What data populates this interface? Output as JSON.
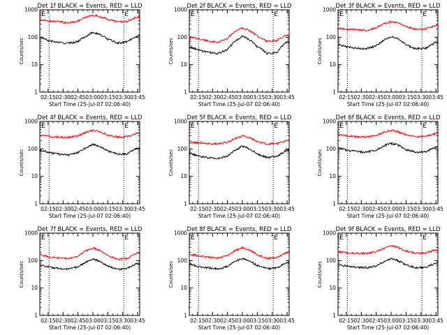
{
  "chart_data": [
    {
      "type": "line",
      "title": "Det 1f BLACK = Events, RED = LLD",
      "xlabel": "Start Time (25-Jul-07 02:06:40)",
      "ylabel": "Counts/sec",
      "yscale": "log",
      "ylim": [
        1,
        1000
      ],
      "xlim": [
        "02:06:40",
        "03:47:00"
      ],
      "x_ticks": [
        "02:15",
        "02:30",
        "02:45",
        "03:00",
        "03:15",
        "03:30",
        "03:45"
      ],
      "y_ticks": [
        "1",
        "10",
        "100",
        "1000"
      ],
      "vlines": [
        "02:16",
        "03:31"
      ],
      "markers": [
        {
          "label": "E",
          "x": "02:07:30"
        },
        {
          "label": "E",
          "x": "03:31"
        }
      ],
      "series": [
        {
          "color": "#ff0000",
          "x": [
            "02:06:40",
            "02:15",
            "02:25",
            "02:35",
            "02:45",
            "02:55",
            "03:00",
            "03:05",
            "03:15",
            "03:25",
            "03:35",
            "03:45"
          ],
          "values": [
            420,
            390,
            370,
            330,
            390,
            560,
            640,
            590,
            450,
            360,
            370,
            560
          ]
        },
        {
          "color": "#000000",
          "x": [
            "02:06:40",
            "02:15",
            "02:25",
            "02:35",
            "02:45",
            "02:55",
            "03:00",
            "03:05",
            "03:15",
            "03:25",
            "03:35",
            "03:45"
          ],
          "values": [
            100,
            75,
            65,
            60,
            70,
            120,
            150,
            135,
            85,
            60,
            70,
            115
          ]
        }
      ]
    },
    {
      "type": "line",
      "title": "Det 2f BLACK = Events, RED = LLD",
      "xlabel": "Start Time (25-Jul-07 02:06:40)",
      "ylabel": "Counts/sec",
      "yscale": "log",
      "ylim": [
        1,
        1000
      ],
      "xlim": [
        "02:06:40",
        "03:47:00"
      ],
      "x_ticks": [
        "02:15",
        "02:30",
        "02:45",
        "03:00",
        "03:15",
        "03:30",
        "03:45"
      ],
      "y_ticks": [
        "1",
        "10",
        "100",
        "1000"
      ],
      "vlines": [
        "02:16",
        "03:31"
      ],
      "markers": [
        {
          "label": "E",
          "x": "02:07:30"
        },
        {
          "label": "E",
          "x": "03:31"
        }
      ],
      "series": [
        {
          "color": "#ff0000",
          "x": [
            "02:06:40",
            "02:15",
            "02:25",
            "02:35",
            "02:45",
            "02:55",
            "03:00",
            "03:05",
            "03:15",
            "03:25",
            "03:35",
            "03:45"
          ],
          "values": [
            100,
            90,
            75,
            65,
            90,
            180,
            220,
            190,
            110,
            70,
            75,
            120
          ]
        },
        {
          "color": "#000000",
          "x": [
            "02:06:40",
            "02:15",
            "02:25",
            "02:35",
            "02:45",
            "02:55",
            "03:00",
            "03:05",
            "03:15",
            "03:25",
            "03:35",
            "03:45"
          ],
          "values": [
            45,
            35,
            28,
            25,
            35,
            80,
            110,
            90,
            45,
            25,
            28,
            70
          ]
        }
      ]
    },
    {
      "type": "line",
      "title": "Det 3f BLACK = Events, RED = LLD",
      "xlabel": "Start Time (25-Jul-07 02:06:40)",
      "ylabel": "Counts/sec",
      "yscale": "log",
      "ylim": [
        1,
        1000
      ],
      "xlim": [
        "02:06:40",
        "03:47:00"
      ],
      "x_ticks": [
        "02:15",
        "02:30",
        "02:45",
        "03:00",
        "03:15",
        "03:30",
        "03:45"
      ],
      "y_ticks": [
        "1",
        "10",
        "100",
        "1000"
      ],
      "vlines": [
        "02:16",
        "03:31"
      ],
      "markers": [
        {
          "label": "E",
          "x": "02:07:30"
        },
        {
          "label": "E",
          "x": "03:31"
        }
      ],
      "series": [
        {
          "color": "#ff0000",
          "x": [
            "02:06:40",
            "02:15",
            "02:25",
            "02:35",
            "02:45",
            "02:55",
            "03:00",
            "03:05",
            "03:15",
            "03:25",
            "03:35",
            "03:45"
          ],
          "values": [
            210,
            200,
            185,
            180,
            220,
            330,
            370,
            340,
            240,
            190,
            200,
            270
          ]
        },
        {
          "color": "#000000",
          "x": [
            "02:06:40",
            "02:15",
            "02:25",
            "02:35",
            "02:45",
            "02:55",
            "03:00",
            "03:05",
            "03:15",
            "03:25",
            "03:35",
            "03:45"
          ],
          "values": [
            55,
            45,
            40,
            38,
            48,
            85,
            105,
            92,
            52,
            38,
            40,
            65
          ]
        }
      ]
    },
    {
      "type": "line",
      "title": "Det 4f BLACK = Events, RED = LLD",
      "xlabel": "Start Time (25-Jul-07 02:06:40)",
      "ylabel": "Counts/sec",
      "yscale": "log",
      "ylim": [
        1,
        1000
      ],
      "xlim": [
        "02:06:40",
        "03:47:00"
      ],
      "x_ticks": [
        "02:15",
        "02:30",
        "02:45",
        "03:00",
        "03:15",
        "03:30",
        "03:45"
      ],
      "y_ticks": [
        "1",
        "10",
        "100",
        "1000"
      ],
      "vlines": [
        "02:16",
        "03:31"
      ],
      "markers": [
        {
          "label": "E",
          "x": "02:07:30"
        },
        {
          "label": "E",
          "x": "03:31"
        }
      ],
      "series": [
        {
          "color": "#ff0000",
          "x": [
            "02:06:40",
            "02:15",
            "02:25",
            "02:35",
            "02:45",
            "02:55",
            "03:00",
            "03:05",
            "03:15",
            "03:25",
            "03:35",
            "03:45"
          ],
          "values": [
            310,
            290,
            270,
            260,
            300,
            420,
            470,
            440,
            320,
            270,
            280,
            360
          ]
        },
        {
          "color": "#000000",
          "x": [
            "02:06:40",
            "02:15",
            "02:25",
            "02:35",
            "02:45",
            "02:55",
            "03:00",
            "03:05",
            "03:15",
            "03:25",
            "03:35",
            "03:45"
          ],
          "values": [
            90,
            75,
            65,
            60,
            72,
            120,
            145,
            130,
            85,
            62,
            68,
            105
          ]
        }
      ]
    },
    {
      "type": "line",
      "title": "Det 5f BLACK = Events, RED = LLD",
      "xlabel": "Start Time (25-Jul-07 02:06:40)",
      "ylabel": "Counts/sec",
      "yscale": "log",
      "ylim": [
        1,
        1000
      ],
      "xlim": [
        "02:06:40",
        "03:47:00"
      ],
      "x_ticks": [
        "02:15",
        "02:30",
        "02:45",
        "03:00",
        "03:15",
        "03:30",
        "03:45"
      ],
      "y_ticks": [
        "1",
        "10",
        "100",
        "1000"
      ],
      "vlines": [
        "02:16",
        "03:31"
      ],
      "markers": [
        {
          "label": "E",
          "x": "02:07:30"
        },
        {
          "label": "E",
          "x": "03:31"
        }
      ],
      "series": [
        {
          "color": "#ff0000",
          "x": [
            "02:06:40",
            "02:15",
            "02:25",
            "02:35",
            "02:45",
            "02:55",
            "03:00",
            "03:05",
            "03:15",
            "03:25",
            "03:35",
            "03:45"
          ],
          "values": [
            175,
            170,
            160,
            150,
            175,
            260,
            300,
            270,
            185,
            150,
            160,
            200
          ]
        },
        {
          "color": "#000000",
          "x": [
            "02:06:40",
            "02:15",
            "02:25",
            "02:35",
            "02:45",
            "02:55",
            "03:00",
            "03:05",
            "03:15",
            "03:25",
            "03:35",
            "03:45"
          ],
          "values": [
            70,
            55,
            48,
            45,
            55,
            100,
            125,
            110,
            65,
            48,
            52,
            90
          ]
        }
      ]
    },
    {
      "type": "line",
      "title": "Det 6f BLACK = Events, RED = LLD",
      "xlabel": "Start Time (25-Jul-07 02:06:40)",
      "ylabel": "Counts/sec",
      "yscale": "log",
      "ylim": [
        1,
        1000
      ],
      "xlim": [
        "02:06:40",
        "03:47:00"
      ],
      "x_ticks": [
        "02:15",
        "02:30",
        "02:45",
        "03:00",
        "03:15",
        "03:30",
        "03:45"
      ],
      "y_ticks": [
        "1",
        "10",
        "100",
        "1000"
      ],
      "vlines": [
        "02:16",
        "03:31"
      ],
      "markers": [
        {
          "label": "E",
          "x": "02:07:30"
        },
        {
          "label": "E",
          "x": "03:31"
        }
      ],
      "series": [
        {
          "color": "#ff0000",
          "x": [
            "02:06:40",
            "02:15",
            "02:25",
            "02:35",
            "02:45",
            "02:55",
            "03:00",
            "03:05",
            "03:15",
            "03:25",
            "03:35",
            "03:45"
          ],
          "values": [
            330,
            300,
            280,
            270,
            310,
            420,
            470,
            440,
            330,
            280,
            290,
            360
          ]
        },
        {
          "color": "#000000",
          "x": [
            "02:06:40",
            "02:15",
            "02:25",
            "02:35",
            "02:45",
            "02:55",
            "03:00",
            "03:05",
            "03:15",
            "03:25",
            "03:35",
            "03:45"
          ],
          "values": [
            110,
            90,
            80,
            75,
            90,
            140,
            160,
            145,
            95,
            75,
            80,
            115
          ]
        }
      ]
    },
    {
      "type": "line",
      "title": "Det 7f BLACK = Events, RED = LLD",
      "xlabel": "Start Time (25-Jul-07 02:06:40)",
      "ylabel": "Counts/sec",
      "yscale": "log",
      "ylim": [
        1,
        1000
      ],
      "xlim": [
        "02:06:40",
        "03:47:00"
      ],
      "x_ticks": [
        "02:15",
        "02:30",
        "02:45",
        "03:00",
        "03:15",
        "03:30",
        "03:45"
      ],
      "y_ticks": [
        "1",
        "10",
        "100",
        "1000"
      ],
      "vlines": [
        "02:16",
        "03:31"
      ],
      "markers": [
        {
          "label": "E",
          "x": "02:07:30"
        },
        {
          "label": "E",
          "x": "03:31"
        }
      ],
      "series": [
        {
          "color": "#ff0000",
          "x": [
            "02:06:40",
            "02:15",
            "02:25",
            "02:35",
            "02:45",
            "02:55",
            "03:00",
            "03:05",
            "03:15",
            "03:25",
            "03:35",
            "03:45"
          ],
          "values": [
            160,
            140,
            125,
            115,
            140,
            240,
            290,
            250,
            150,
            110,
            120,
            190
          ]
        },
        {
          "color": "#000000",
          "x": [
            "02:06:40",
            "02:15",
            "02:25",
            "02:35",
            "02:45",
            "02:55",
            "03:00",
            "03:05",
            "03:15",
            "03:25",
            "03:35",
            "03:45"
          ],
          "values": [
            70,
            60,
            52,
            50,
            58,
            95,
            115,
            100,
            62,
            48,
            52,
            80
          ]
        }
      ]
    },
    {
      "type": "line",
      "title": "Det 8f BLACK = Events, RED = LLD",
      "xlabel": "Start Time (25-Jul-07 02:06:40)",
      "ylabel": "Counts/sec",
      "yscale": "log",
      "ylim": [
        1,
        1000
      ],
      "xlim": [
        "02:06:40",
        "03:47:00"
      ],
      "x_ticks": [
        "02:15",
        "02:30",
        "02:45",
        "03:00",
        "03:15",
        "03:30",
        "03:45"
      ],
      "y_ticks": [
        "1",
        "10",
        "100",
        "1000"
      ],
      "vlines": [
        "02:16",
        "03:31"
      ],
      "markers": [
        {
          "label": "E",
          "x": "02:07:30"
        },
        {
          "label": "E",
          "x": "03:31"
        }
      ],
      "series": [
        {
          "color": "#ff0000",
          "x": [
            "02:06:40",
            "02:15",
            "02:25",
            "02:35",
            "02:45",
            "02:55",
            "03:00",
            "03:05",
            "03:15",
            "03:25",
            "03:35",
            "03:45"
          ],
          "values": [
            170,
            150,
            135,
            125,
            150,
            250,
            300,
            260,
            160,
            120,
            130,
            200
          ]
        },
        {
          "color": "#000000",
          "x": [
            "02:06:40",
            "02:15",
            "02:25",
            "02:35",
            "02:45",
            "02:55",
            "03:00",
            "03:05",
            "03:15",
            "03:25",
            "03:35",
            "03:45"
          ],
          "values": [
            75,
            62,
            55,
            50,
            60,
            100,
            120,
            105,
            65,
            50,
            55,
            85
          ]
        }
      ]
    },
    {
      "type": "line",
      "title": "Det 9f BLACK = Events, RED = LLD",
      "xlabel": "Start Time (25-Jul-07 02:06:40)",
      "ylabel": "Counts/sec",
      "yscale": "log",
      "ylim": [
        1,
        1000
      ],
      "xlim": [
        "02:06:40",
        "03:47:00"
      ],
      "x_ticks": [
        "02:15",
        "02:30",
        "02:45",
        "03:00",
        "03:15",
        "03:30",
        "03:45"
      ],
      "y_ticks": [
        "1",
        "10",
        "100",
        "1000"
      ],
      "vlines": [
        "02:16",
        "03:31"
      ],
      "markers": [
        {
          "label": "E",
          "x": "02:07:30"
        },
        {
          "label": "E",
          "x": "03:31"
        }
      ],
      "series": [
        {
          "color": "#ff0000",
          "x": [
            "02:06:40",
            "02:15",
            "02:25",
            "02:35",
            "02:45",
            "02:55",
            "03:00",
            "03:05",
            "03:15",
            "03:25",
            "03:35",
            "03:45"
          ],
          "values": [
            210,
            195,
            185,
            180,
            210,
            300,
            340,
            310,
            220,
            185,
            190,
            240
          ]
        },
        {
          "color": "#000000",
          "x": [
            "02:06:40",
            "02:15",
            "02:25",
            "02:35",
            "02:45",
            "02:55",
            "03:00",
            "03:05",
            "03:15",
            "03:25",
            "03:35",
            "03:45"
          ],
          "values": [
            75,
            62,
            58,
            55,
            62,
            100,
            120,
            105,
            68,
            55,
            58,
            80
          ]
        }
      ]
    }
  ]
}
